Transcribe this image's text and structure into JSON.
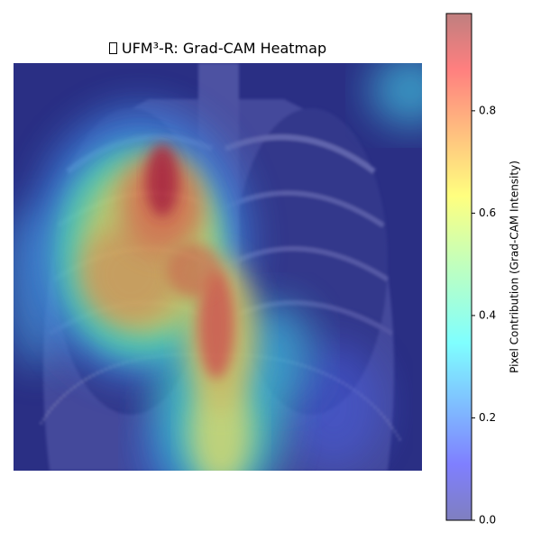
{
  "chart_data": {
    "type": "heatmap",
    "title": "UFM³-R: Grad-CAM Heatmap",
    "title_icon": "missing-glyph-box",
    "axes_visible": false,
    "background_image": "chest-xray-frontal",
    "colormap": "jet",
    "overlay_alpha": 0.5,
    "colorbar": {
      "label": "Pixel Contribution (Grad-CAM Intensity)",
      "range": [
        0.0,
        0.99
      ],
      "ticks": [
        0.0,
        0.2,
        0.4,
        0.6,
        0.8
      ],
      "tick_labels": [
        "0.0",
        "0.2",
        "0.4",
        "0.6",
        "0.8"
      ],
      "position": "right"
    },
    "heat_regions": [
      {
        "name": "right-upper-lobe-hotspot",
        "peak": 0.96,
        "center": [
          0.36,
          0.27
        ]
      },
      {
        "name": "right-mid-lung-spread",
        "peak": 0.7,
        "center": [
          0.28,
          0.42
        ]
      },
      {
        "name": "mediastinal-band",
        "peak": 0.85,
        "center": [
          0.5,
          0.62
        ]
      },
      {
        "name": "lower-central-band",
        "peak": 0.55,
        "center": [
          0.5,
          0.9
        ]
      },
      {
        "name": "left-lower-zone",
        "peak": 0.3,
        "center": [
          0.78,
          0.82
        ]
      },
      {
        "name": "top-right-corner",
        "peak": 0.35,
        "center": [
          0.96,
          0.08
        ]
      }
    ]
  }
}
